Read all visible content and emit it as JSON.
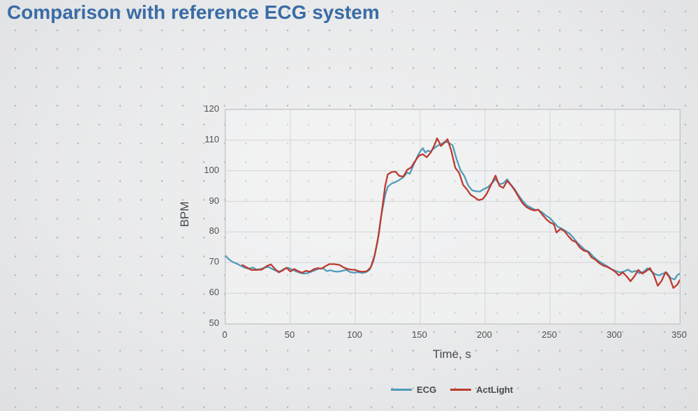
{
  "title": "Comparison with reference ECG system",
  "colors": {
    "title_text": "#3a6ca6",
    "background": "#e9eaeb",
    "background_dots": "#b5b7b8",
    "grid_line": "#d3d4d5",
    "plot_border": "#c3c4c6",
    "axis_text": "#4f5051",
    "ecg_line": "#4f9cba",
    "actlight_line": "#bc3a31"
  },
  "chart_data": {
    "type": "line",
    "title": "Comparison with reference ECG system",
    "xlabel": "Time, s",
    "ylabel": "BPM",
    "xlim": [
      0,
      350
    ],
    "ylim": [
      50,
      120
    ],
    "x_ticks": [
      0,
      50,
      100,
      150,
      200,
      250,
      300,
      350
    ],
    "y_ticks": [
      50,
      60,
      70,
      80,
      90,
      100,
      110,
      120
    ],
    "grid": true,
    "legend_position": "bottom",
    "series": [
      {
        "name": "ECG",
        "color": "#4f9cba",
        "points": [
          [
            0,
            72.2
          ],
          [
            3,
            70.9
          ],
          [
            6,
            70.1
          ],
          [
            9,
            69.6
          ],
          [
            12,
            68.9
          ],
          [
            15,
            68.3
          ],
          [
            18,
            68.0
          ],
          [
            21,
            68.4
          ],
          [
            24,
            67.7
          ],
          [
            27,
            67.9
          ],
          [
            30,
            68.3
          ],
          [
            33,
            68.6
          ],
          [
            36,
            67.9
          ],
          [
            39,
            67.3
          ],
          [
            42,
            67.1
          ],
          [
            45,
            67.9
          ],
          [
            48,
            68.3
          ],
          [
            51,
            67.8
          ],
          [
            54,
            67.2
          ],
          [
            57,
            66.7
          ],
          [
            60,
            66.4
          ],
          [
            63,
            66.5
          ],
          [
            66,
            67.0
          ],
          [
            69,
            67.5
          ],
          [
            72,
            68.0
          ],
          [
            75,
            68.2
          ],
          [
            78,
            67.2
          ],
          [
            81,
            67.5
          ],
          [
            84,
            67.1
          ],
          [
            87,
            67.0
          ],
          [
            90,
            67.3
          ],
          [
            93,
            67.6
          ],
          [
            96,
            66.9
          ],
          [
            99,
            66.7
          ],
          [
            102,
            66.9
          ],
          [
            105,
            66.6
          ],
          [
            108,
            66.8
          ],
          [
            111,
            67.6
          ],
          [
            114,
            70.5
          ],
          [
            117,
            76.5
          ],
          [
            120,
            85.5
          ],
          [
            123,
            92.0
          ],
          [
            125,
            94.8
          ],
          [
            128,
            95.8
          ],
          [
            131,
            96.3
          ],
          [
            134,
            97.0
          ],
          [
            137,
            97.9
          ],
          [
            140,
            99.4
          ],
          [
            142,
            99.0
          ],
          [
            145,
            102.0
          ],
          [
            148,
            104.8
          ],
          [
            150,
            106.3
          ],
          [
            152,
            107.4
          ],
          [
            154,
            105.9
          ],
          [
            156,
            106.6
          ],
          [
            158,
            106.2
          ],
          [
            160,
            107.1
          ],
          [
            163,
            108.1
          ],
          [
            166,
            108.7
          ],
          [
            169,
            109.5
          ],
          [
            172,
            109.2
          ],
          [
            175,
            108.3
          ],
          [
            178,
            103.8
          ],
          [
            181,
            100.2
          ],
          [
            184,
            98.3
          ],
          [
            187,
            95.2
          ],
          [
            190,
            93.6
          ],
          [
            193,
            93.3
          ],
          [
            196,
            93.2
          ],
          [
            199,
            94.0
          ],
          [
            202,
            94.6
          ],
          [
            205,
            95.8
          ],
          [
            208,
            97.3
          ],
          [
            211,
            95.6
          ],
          [
            214,
            95.9
          ],
          [
            217,
            97.2
          ],
          [
            220,
            95.4
          ],
          [
            223,
            93.8
          ],
          [
            226,
            91.8
          ],
          [
            229,
            90.1
          ],
          [
            232,
            88.7
          ],
          [
            235,
            88.0
          ],
          [
            238,
            87.3
          ],
          [
            241,
            87.1
          ],
          [
            244,
            86.4
          ],
          [
            247,
            85.3
          ],
          [
            250,
            84.5
          ],
          [
            253,
            83.1
          ],
          [
            256,
            81.7
          ],
          [
            259,
            81.1
          ],
          [
            262,
            80.3
          ],
          [
            265,
            79.5
          ],
          [
            268,
            78.1
          ],
          [
            271,
            76.5
          ],
          [
            274,
            75.3
          ],
          [
            277,
            74.1
          ],
          [
            280,
            73.5
          ],
          [
            283,
            72.1
          ],
          [
            286,
            70.9
          ],
          [
            289,
            70.1
          ],
          [
            292,
            69.3
          ],
          [
            295,
            68.5
          ],
          [
            298,
            67.7
          ],
          [
            301,
            67.2
          ],
          [
            304,
            66.8
          ],
          [
            307,
            67.1
          ],
          [
            310,
            67.7
          ],
          [
            313,
            66.9
          ],
          [
            316,
            67.3
          ],
          [
            319,
            66.5
          ],
          [
            322,
            67.0
          ],
          [
            325,
            68.1
          ],
          [
            328,
            67.2
          ],
          [
            331,
            66.2
          ],
          [
            334,
            65.8
          ],
          [
            337,
            66.4
          ],
          [
            340,
            66.7
          ],
          [
            343,
            64.9
          ],
          [
            346,
            64.5
          ],
          [
            348,
            65.9
          ],
          [
            350,
            66.4
          ]
        ]
      },
      {
        "name": "ActLight",
        "color": "#bc3a31",
        "points": [
          [
            13,
            69.2
          ],
          [
            16,
            68.5
          ],
          [
            20,
            67.6
          ],
          [
            24,
            67.6
          ],
          [
            28,
            67.7
          ],
          [
            32,
            68.9
          ],
          [
            35,
            69.4
          ],
          [
            38,
            68.0
          ],
          [
            41,
            66.8
          ],
          [
            44,
            67.4
          ],
          [
            47,
            68.3
          ],
          [
            50,
            67.1
          ],
          [
            53,
            67.9
          ],
          [
            56,
            67.2
          ],
          [
            59,
            66.7
          ],
          [
            62,
            67.3
          ],
          [
            65,
            67.0
          ],
          [
            68,
            67.8
          ],
          [
            71,
            68.2
          ],
          [
            74,
            68.0
          ],
          [
            77,
            68.8
          ],
          [
            80,
            69.5
          ],
          [
            84,
            69.5
          ],
          [
            88,
            69.2
          ],
          [
            91,
            68.4
          ],
          [
            94,
            67.9
          ],
          [
            97,
            67.7
          ],
          [
            100,
            67.6
          ],
          [
            103,
            67.1
          ],
          [
            106,
            67.0
          ],
          [
            109,
            67.2
          ],
          [
            112,
            68.5
          ],
          [
            115,
            72.5
          ],
          [
            118,
            79.0
          ],
          [
            121,
            88.5
          ],
          [
            123,
            95.0
          ],
          [
            125,
            98.8
          ],
          [
            128,
            99.6
          ],
          [
            131,
            99.7
          ],
          [
            134,
            98.3
          ],
          [
            137,
            98.1
          ],
          [
            140,
            100.3
          ],
          [
            143,
            101.1
          ],
          [
            146,
            103.1
          ],
          [
            149,
            104.9
          ],
          [
            152,
            105.4
          ],
          [
            155,
            104.4
          ],
          [
            158,
            105.9
          ],
          [
            161,
            108.4
          ],
          [
            163,
            110.6
          ],
          [
            166,
            108.1
          ],
          [
            169,
            109.3
          ],
          [
            171,
            110.3
          ],
          [
            174,
            106.5
          ],
          [
            177,
            101.0
          ],
          [
            180,
            99.3
          ],
          [
            183,
            95.4
          ],
          [
            186,
            93.9
          ],
          [
            189,
            92.1
          ],
          [
            192,
            91.3
          ],
          [
            195,
            90.4
          ],
          [
            198,
            90.7
          ],
          [
            201,
            92.3
          ],
          [
            204,
            94.9
          ],
          [
            208,
            98.4
          ],
          [
            211,
            95.1
          ],
          [
            214,
            94.4
          ],
          [
            217,
            96.7
          ],
          [
            220,
            95.3
          ],
          [
            223,
            93.5
          ],
          [
            226,
            91.3
          ],
          [
            229,
            89.3
          ],
          [
            232,
            88.1
          ],
          [
            235,
            87.4
          ],
          [
            238,
            87.0
          ],
          [
            241,
            87.3
          ],
          [
            244,
            85.7
          ],
          [
            247,
            84.2
          ],
          [
            250,
            83.1
          ],
          [
            253,
            82.5
          ],
          [
            255,
            79.8
          ],
          [
            258,
            81.0
          ],
          [
            261,
            80.3
          ],
          [
            264,
            78.7
          ],
          [
            267,
            77.3
          ],
          [
            270,
            76.7
          ],
          [
            273,
            74.9
          ],
          [
            276,
            73.9
          ],
          [
            279,
            73.6
          ],
          [
            282,
            71.7
          ],
          [
            285,
            70.9
          ],
          [
            288,
            69.8
          ],
          [
            291,
            69.0
          ],
          [
            294,
            68.6
          ],
          [
            297,
            67.9
          ],
          [
            300,
            67.1
          ],
          [
            303,
            65.8
          ],
          [
            306,
            66.8
          ],
          [
            309,
            65.5
          ],
          [
            312,
            63.9
          ],
          [
            315,
            65.5
          ],
          [
            318,
            67.6
          ],
          [
            321,
            66.4
          ],
          [
            324,
            67.2
          ],
          [
            327,
            68.2
          ],
          [
            330,
            65.9
          ],
          [
            333,
            62.4
          ],
          [
            336,
            64.1
          ],
          [
            339,
            66.9
          ],
          [
            342,
            65.2
          ],
          [
            345,
            61.7
          ],
          [
            348,
            62.8
          ],
          [
            350,
            64.3
          ]
        ]
      }
    ]
  }
}
